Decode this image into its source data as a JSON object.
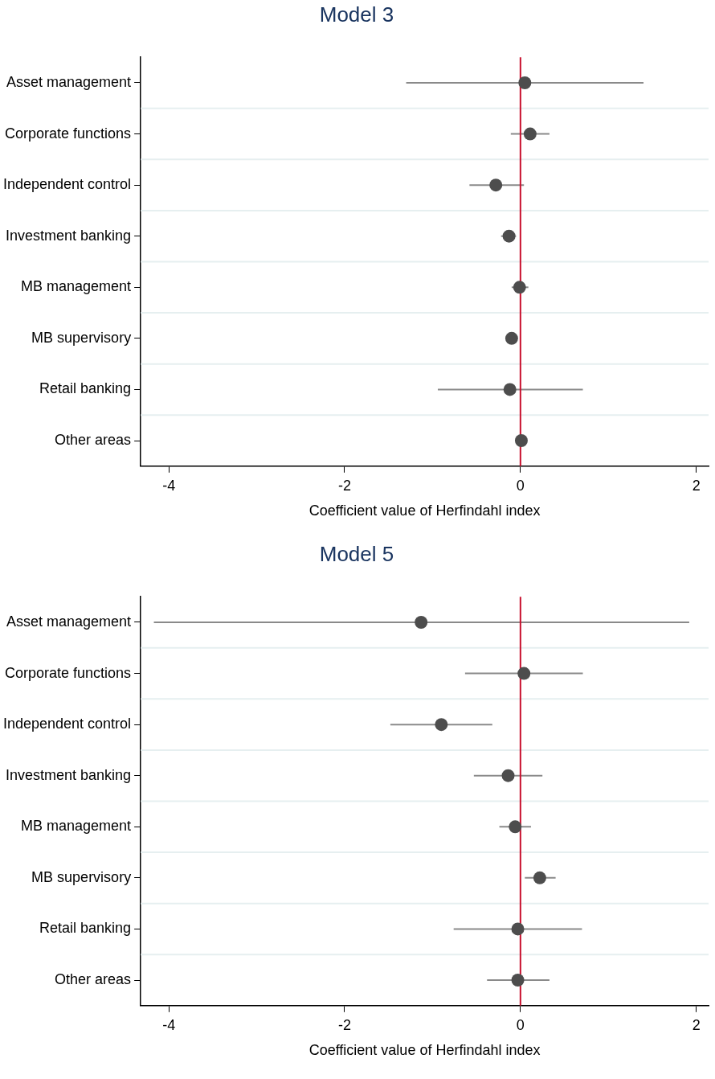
{
  "chart_data": [
    {
      "type": "scatter",
      "title": "Model 3",
      "xlabel": "Coefficient value of Herfindahl index",
      "orientation": "horizontal",
      "categories": [
        "Asset management",
        "Corporate functions",
        "Independent control",
        "Investment banking",
        "MB management",
        "MB supervisory",
        "Retail banking",
        "Other areas"
      ],
      "series": [
        {
          "color": "#4d4d4d",
          "values": [
            0.05,
            0.11,
            -0.28,
            -0.13,
            -0.01,
            -0.1,
            -0.12,
            0.01
          ],
          "errors": [
            [
              -1.3,
              1.4
            ],
            [
              -0.11,
              0.33
            ],
            [
              -0.58,
              0.04
            ],
            [
              -0.22,
              -0.05
            ],
            [
              -0.1,
              0.09
            ],
            null,
            [
              -0.94,
              0.71
            ],
            null
          ]
        }
      ],
      "xlim": [
        -4.32,
        2.14
      ],
      "xticks": [
        -4,
        -2,
        0,
        2
      ],
      "grid": "y",
      "legend": false,
      "marker": "circle",
      "ref_lines": [
        {
          "axis": "x",
          "value": 0,
          "color": "#c8102e"
        }
      ]
    },
    {
      "type": "scatter",
      "title": "Model 5",
      "xlabel": "Coefficient value of Herfindahl index",
      "orientation": "horizontal",
      "categories": [
        "Asset management",
        "Corporate functions",
        "Independent control",
        "Investment banking",
        "MB management",
        "MB supervisory",
        "Retail banking",
        "Other areas"
      ],
      "series": [
        {
          "color": "#4d4d4d",
          "values": [
            -1.13,
            0.04,
            -0.9,
            -0.14,
            -0.06,
            0.22,
            -0.03,
            -0.03
          ],
          "errors": [
            [
              -4.17,
              1.92
            ],
            [
              -0.63,
              0.71
            ],
            [
              -1.48,
              -0.32
            ],
            [
              -0.53,
              0.25
            ],
            [
              -0.24,
              0.12
            ],
            [
              0.05,
              0.4
            ],
            [
              -0.76,
              0.7
            ],
            [
              -0.38,
              0.33
            ]
          ]
        }
      ],
      "xlim": [
        -4.32,
        2.14
      ],
      "xticks": [
        -4,
        -2,
        0,
        2
      ],
      "grid": "y",
      "legend": false,
      "marker": "circle",
      "ref_lines": [
        {
          "axis": "x",
          "value": 0,
          "color": "#c8102e"
        }
      ]
    }
  ]
}
